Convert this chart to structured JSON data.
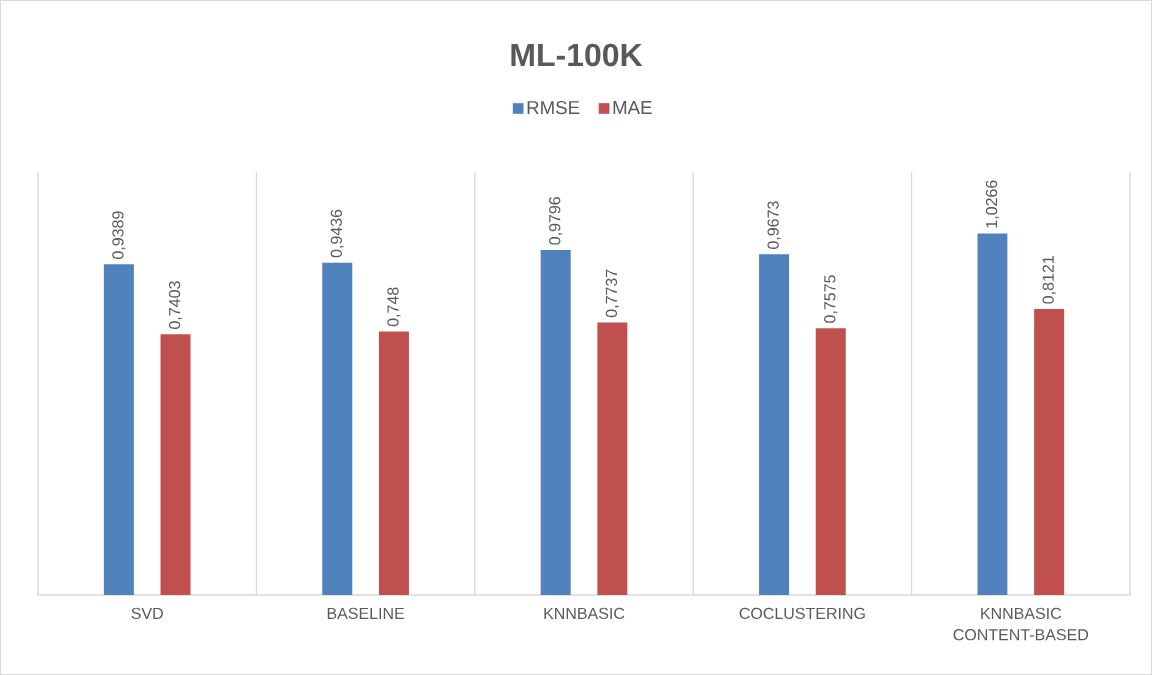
{
  "chart_data": {
    "type": "bar",
    "title": "ML-100K",
    "categories": [
      "SVD",
      "BASELINE",
      "KNNBASIC",
      "COCLUSTERING",
      "KNNBASIC CONTENT-BASED"
    ],
    "series": [
      {
        "name": "RMSE",
        "color": "#4f81bd",
        "values": [
          0.9389,
          0.9436,
          0.9796,
          0.9673,
          1.0266
        ],
        "value_labels": [
          "0,9389",
          "0,9436",
          "0,9796",
          "0,9673",
          "1,0266"
        ]
      },
      {
        "name": "MAE",
        "color": "#c0504d",
        "values": [
          0.7403,
          0.748,
          0.7737,
          0.7575,
          0.8121
        ],
        "value_labels": [
          "0,7403",
          "0,748",
          "0,7737",
          "0,7575",
          "0,8121"
        ]
      }
    ],
    "ylim": [
      0,
      1.2
    ],
    "grid": "x",
    "legend": "top",
    "tick_labels": "x"
  }
}
